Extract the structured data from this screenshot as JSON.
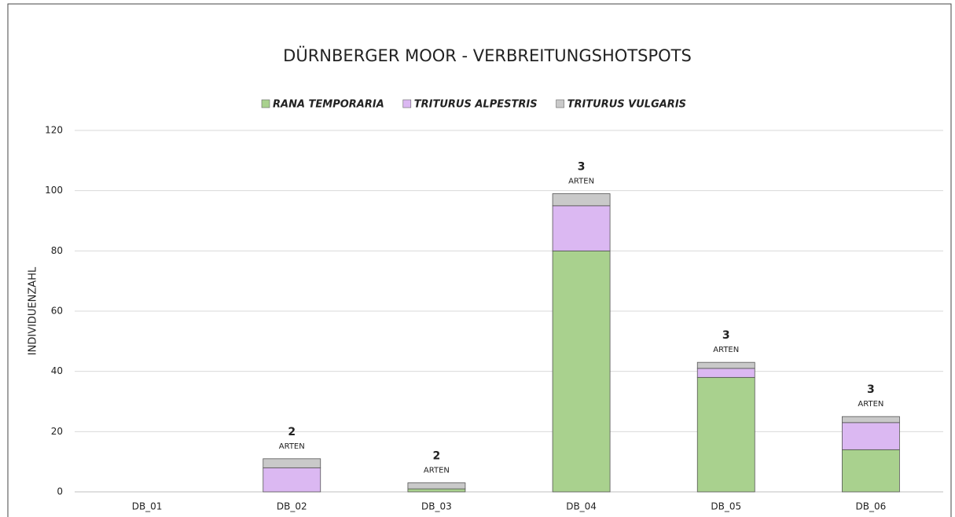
{
  "chart_data": {
    "type": "stacked_bar",
    "title": "DÜRNBERGER MOOR - VERBREITUNGSHOTSPOTS",
    "y_label": "INDIVIDUENZAHL",
    "categories": [
      "DB_01",
      "DB_02",
      "DB_03",
      "DB_04",
      "DB_05",
      "DB_06"
    ],
    "series": [
      {
        "name": "RANA TEMPORARIA",
        "color": "#a9d18e",
        "values": [
          0,
          0,
          1,
          80,
          38,
          14
        ]
      },
      {
        "name": "TRITURUS ALPESTRIS",
        "color": "#dbb8f2",
        "values": [
          0,
          8,
          0,
          15,
          3,
          9
        ]
      },
      {
        "name": "TRITURUS VULGARIS",
        "color": "#c9c9c9",
        "values": [
          0,
          3,
          2,
          4,
          2,
          2
        ]
      }
    ],
    "species_counts": [
      null,
      2,
      2,
      3,
      3,
      3
    ],
    "species_label": "ARTEN",
    "ylim": [
      0,
      120
    ],
    "yticks": [
      0,
      20,
      40,
      60,
      80,
      100,
      120
    ],
    "grid": true,
    "legend": "top"
  }
}
